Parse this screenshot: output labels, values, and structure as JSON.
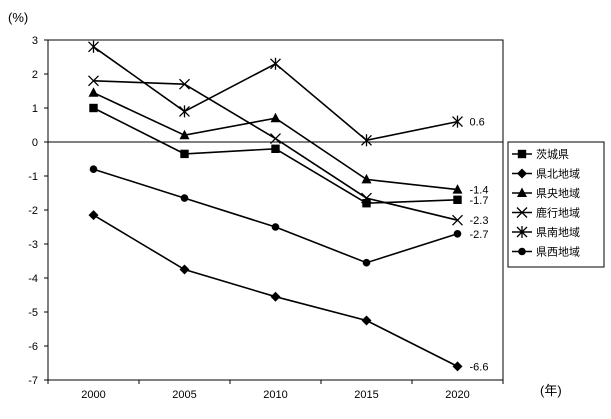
{
  "chart_data": {
    "type": "line",
    "title": "",
    "ylabel_unit": "(%)",
    "xlabel_unit": "(年)",
    "x": [
      "2000",
      "2005",
      "2010",
      "2015",
      "2020"
    ],
    "ylim": [
      -7,
      3
    ],
    "yticks": [
      3,
      2,
      1,
      0,
      -1,
      -2,
      -3,
      -4,
      -5,
      -6,
      -7
    ],
    "grid": false,
    "legend_position": "right",
    "series": [
      {
        "name": "茨城県",
        "marker": "square",
        "values": [
          1.0,
          -0.35,
          -0.2,
          -1.8,
          -1.7
        ],
        "end_label": "-1.7"
      },
      {
        "name": "県北地域",
        "marker": "diamond",
        "values": [
          -2.15,
          -3.75,
          -4.55,
          -5.25,
          -6.6
        ],
        "end_label": "-6.6"
      },
      {
        "name": "県央地域",
        "marker": "triangle",
        "values": [
          1.45,
          0.2,
          0.7,
          -1.1,
          -1.4
        ],
        "end_label": "-1.4"
      },
      {
        "name": "鹿行地域",
        "marker": "x",
        "values": [
          1.8,
          1.7,
          0.1,
          -1.65,
          -2.3
        ],
        "end_label": "-2.3"
      },
      {
        "name": "県南地域",
        "marker": "asterisk",
        "values": [
          2.8,
          0.9,
          2.3,
          0.05,
          0.6
        ],
        "end_label": "0.6"
      },
      {
        "name": "県西地域",
        "marker": "circle",
        "values": [
          -0.8,
          -1.65,
          -2.5,
          -3.55,
          -2.7
        ],
        "end_label": "-2.7"
      }
    ]
  }
}
